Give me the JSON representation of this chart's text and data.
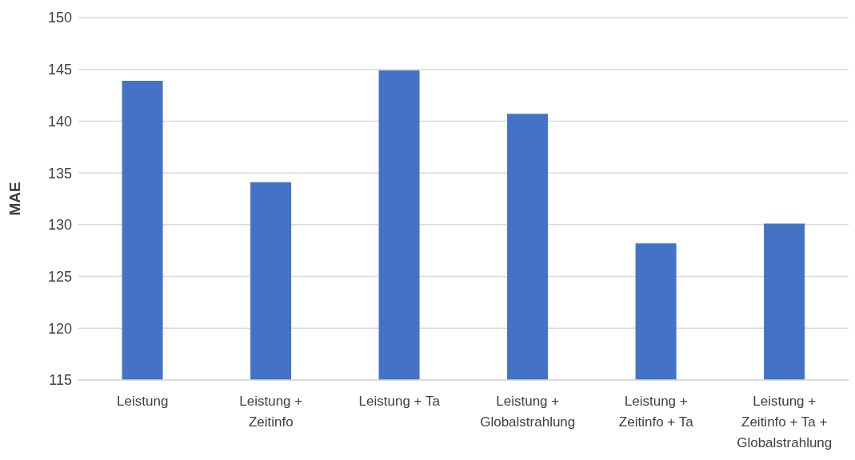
{
  "chart_data": {
    "type": "bar",
    "ylabel": "MAE",
    "categories": [
      "Leistung",
      "Leistung + Zeitinfo",
      "Leistung + Ta",
      "Leistung + Globalstrahlung",
      "Leistung + Zeitinfo + Ta",
      "Leistung + Zeitinfo + Ta + Globalstrahlung"
    ],
    "values": [
      143.9,
      134.1,
      144.9,
      140.7,
      128.2,
      130.1
    ],
    "color": "#4472c4",
    "ylim": [
      115,
      150
    ],
    "yticks": [
      115,
      120,
      125,
      130,
      135,
      140,
      145,
      150
    ],
    "grid": "y"
  }
}
